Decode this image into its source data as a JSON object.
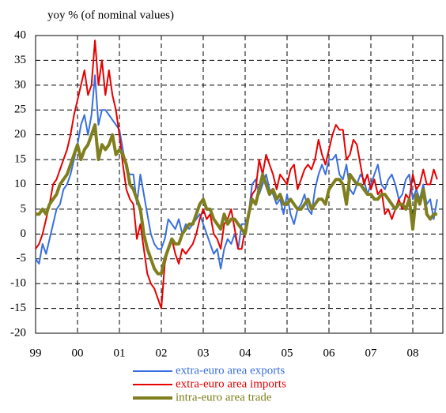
{
  "chart_data": {
    "type": "line",
    "title": "yoy % (of nominal values)",
    "categories": [
      "99",
      null,
      null,
      null,
      null,
      null,
      null,
      null,
      null,
      null,
      null,
      null,
      "00",
      null,
      null,
      null,
      null,
      null,
      null,
      null,
      null,
      null,
      null,
      null,
      "01",
      null,
      null,
      null,
      null,
      null,
      null,
      null,
      null,
      null,
      null,
      null,
      "02",
      null,
      null,
      null,
      null,
      null,
      null,
      null,
      null,
      null,
      null,
      null,
      "03",
      null,
      null,
      null,
      null,
      null,
      null,
      null,
      null,
      null,
      null,
      null,
      "04",
      null,
      null,
      null,
      null,
      null,
      null,
      null,
      null,
      null,
      null,
      null,
      "05",
      null,
      null,
      null,
      null,
      null,
      null,
      null,
      null,
      null,
      null,
      null,
      "06",
      null,
      null,
      null,
      null,
      null,
      null,
      null,
      null,
      null,
      null,
      null,
      "07",
      null,
      null,
      null,
      null,
      null,
      null,
      null,
      null,
      null,
      null,
      null,
      "08",
      null,
      null,
      null,
      null,
      null,
      null,
      null
    ],
    "series": [
      {
        "name": "extra-euro area exports",
        "color": "#3a6fe0",
        "width": 2,
        "values": [
          -5,
          -6,
          -2,
          -4,
          -1,
          2,
          5,
          6,
          9,
          10,
          12,
          15,
          18,
          22,
          24,
          20,
          24,
          32,
          22,
          25,
          25,
          24,
          23,
          22,
          21,
          17,
          13,
          12,
          12,
          6,
          12,
          8,
          4,
          0,
          -2,
          -3,
          -3,
          -1,
          3,
          2,
          1,
          3,
          0,
          2,
          1,
          2,
          3,
          4,
          2,
          0,
          -2,
          -4,
          -3,
          -7,
          -3,
          -1,
          -2,
          0,
          -3,
          2,
          2,
          4,
          10,
          11,
          8,
          10,
          12,
          9,
          8,
          6,
          7,
          4,
          8,
          4,
          2,
          5,
          6,
          8,
          5,
          4,
          9,
          12,
          14,
          12,
          15,
          15,
          16,
          12,
          11,
          14,
          9,
          8,
          10,
          12,
          11,
          8,
          10,
          12,
          14,
          10,
          9,
          11,
          12,
          10,
          7,
          8,
          11,
          12,
          7,
          9,
          7,
          10,
          6,
          7,
          3,
          7
        ]
      },
      {
        "name": "extra-euro area imports",
        "color": "#e60000",
        "width": 2,
        "values": [
          -3,
          -2,
          0,
          3,
          6,
          10,
          11,
          13,
          15,
          17,
          20,
          24,
          27,
          30,
          33,
          28,
          30,
          39,
          30,
          35,
          28,
          33,
          28,
          25,
          20,
          14,
          9,
          7,
          6,
          -1,
          2,
          -3,
          -8,
          -10,
          -11,
          -13,
          -15,
          -6,
          -3,
          -1,
          -4,
          -6,
          -3,
          -4,
          -3,
          -2,
          0,
          3,
          5,
          3,
          4,
          0,
          -1,
          -3,
          2,
          3,
          5,
          1,
          -3,
          -3,
          1,
          4,
          8,
          9,
          15,
          12,
          16,
          14,
          12,
          9,
          12,
          11,
          10,
          13,
          14,
          9,
          11,
          13,
          14,
          13,
          15,
          19,
          16,
          14,
          17,
          20,
          22,
          21,
          21,
          15,
          16,
          19,
          18,
          14,
          10,
          12,
          9,
          11,
          8,
          9,
          4,
          5,
          3,
          5,
          7,
          5,
          8,
          7,
          12,
          9,
          10,
          13,
          10,
          10,
          13,
          11
        ]
      },
      {
        "name": "intra-euro area trade",
        "color": "#7f7f1f",
        "width": 4,
        "values": [
          4,
          4,
          5,
          4,
          6,
          7,
          8,
          10,
          11,
          12,
          14,
          16,
          18,
          15,
          17,
          18,
          20,
          22,
          15,
          18,
          17,
          18,
          20,
          16,
          17,
          16,
          14,
          10,
          9,
          7,
          5,
          0,
          -3,
          -5,
          -7,
          -8,
          -8,
          -5,
          -3,
          -1,
          -2,
          -2,
          0,
          1,
          2,
          2,
          4,
          6,
          7,
          5,
          5,
          3,
          2,
          1,
          4,
          2,
          3,
          3,
          2,
          1,
          0,
          4,
          7,
          6,
          9,
          12,
          10,
          8,
          9,
          7,
          8,
          6,
          6,
          7,
          6,
          5,
          5,
          6,
          7,
          5,
          6,
          7,
          7,
          6,
          9,
          10,
          11,
          11,
          10,
          6,
          12,
          11,
          10,
          10,
          9,
          8,
          8,
          7,
          7,
          8,
          8,
          7,
          6,
          5,
          6,
          6,
          5,
          7,
          1,
          8,
          6,
          9,
          4,
          3,
          4,
          4
        ]
      }
    ],
    "ylim": [
      -20,
      40
    ],
    "yticks": [
      -20,
      -15,
      -10,
      -5,
      0,
      5,
      10,
      15,
      20,
      25,
      30,
      35,
      40
    ],
    "grid": true,
    "legend": "bottom"
  }
}
